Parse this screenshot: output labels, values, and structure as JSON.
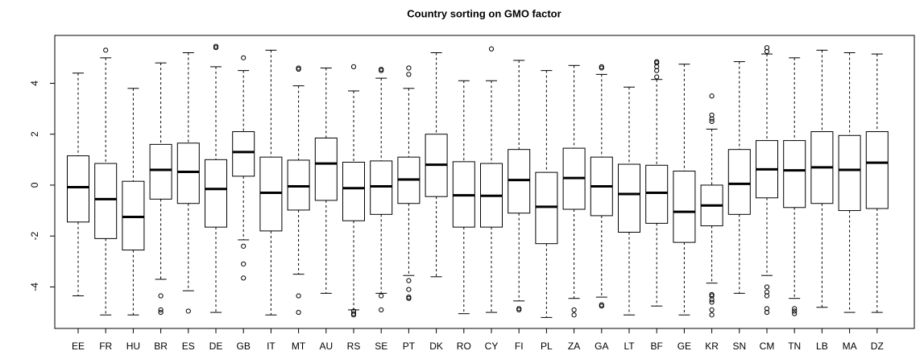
{
  "chart_data": {
    "type": "boxplot",
    "title": "Country sorting on GMO factor",
    "categories": [
      "EE",
      "FR",
      "HU",
      "BR",
      "ES",
      "DE",
      "GB",
      "IT",
      "MT",
      "AU",
      "RS",
      "SE",
      "PT",
      "DK",
      "RO",
      "CY",
      "FI",
      "PL",
      "ZA",
      "GA",
      "LT",
      "BF",
      "GE",
      "KR",
      "SN",
      "CM",
      "TN",
      "LB",
      "MA",
      "DZ"
    ],
    "ylim": [
      -5.63,
      5.88
    ],
    "yticks": [
      -4,
      -2,
      0,
      2,
      4
    ],
    "boxes": [
      {
        "low": -4.35,
        "q1": -1.45,
        "median": -0.08,
        "q3": 1.15,
        "high": 4.4,
        "outliers": []
      },
      {
        "low": -5.1,
        "q1": -2.1,
        "median": -0.55,
        "q3": 0.85,
        "high": 5.0,
        "outliers": [
          5.3
        ]
      },
      {
        "low": -5.1,
        "q1": -2.55,
        "median": -1.25,
        "q3": 0.15,
        "high": 3.8,
        "outliers": []
      },
      {
        "low": -3.7,
        "q1": -0.55,
        "median": 0.6,
        "q3": 1.6,
        "high": 4.8,
        "outliers": [
          -4.35,
          -4.9,
          -5.0
        ]
      },
      {
        "low": -4.15,
        "q1": -0.72,
        "median": 0.52,
        "q3": 1.65,
        "high": 5.2,
        "outliers": [
          -4.95
        ]
      },
      {
        "low": -5.0,
        "q1": -1.65,
        "median": -0.15,
        "q3": 1.0,
        "high": 4.65,
        "outliers": [
          5.4,
          5.45
        ]
      },
      {
        "low": -2.15,
        "q1": 0.35,
        "median": 1.3,
        "q3": 2.1,
        "high": 4.5,
        "outliers": [
          5.0,
          -2.4,
          -3.1,
          -3.65
        ]
      },
      {
        "low": -5.1,
        "q1": -1.8,
        "median": -0.3,
        "q3": 1.1,
        "high": 5.3,
        "outliers": []
      },
      {
        "low": -3.5,
        "q1": -0.98,
        "median": -0.05,
        "q3": 0.98,
        "high": 3.9,
        "outliers": [
          4.55,
          4.6,
          -4.35,
          -5.0
        ]
      },
      {
        "low": -4.25,
        "q1": -0.6,
        "median": 0.85,
        "q3": 1.85,
        "high": 4.6,
        "outliers": []
      },
      {
        "low": -4.9,
        "q1": -1.4,
        "median": -0.12,
        "q3": 0.9,
        "high": 3.7,
        "outliers": [
          4.65,
          -4.95,
          -5.05,
          -5.1
        ]
      },
      {
        "low": -4.25,
        "q1": -1.15,
        "median": -0.05,
        "q3": 0.95,
        "high": 4.2,
        "outliers": [
          4.5,
          4.55,
          -4.35,
          -4.9
        ]
      },
      {
        "low": -3.55,
        "q1": -0.72,
        "median": 0.22,
        "q3": 1.1,
        "high": 3.8,
        "outliers": [
          4.35,
          4.6,
          -3.75,
          -4.1,
          -4.4,
          -4.45
        ]
      },
      {
        "low": -3.6,
        "q1": -0.45,
        "median": 0.8,
        "q3": 2.0,
        "high": 5.2,
        "outliers": []
      },
      {
        "low": -5.05,
        "q1": -1.65,
        "median": -0.4,
        "q3": 0.92,
        "high": 4.1,
        "outliers": []
      },
      {
        "low": -5.0,
        "q1": -1.65,
        "median": -0.42,
        "q3": 0.85,
        "high": 4.1,
        "outliers": [
          5.35
        ]
      },
      {
        "low": -4.55,
        "q1": -1.1,
        "median": 0.2,
        "q3": 1.4,
        "high": 4.9,
        "outliers": [
          -4.85,
          -4.9
        ]
      },
      {
        "low": -5.2,
        "q1": -2.3,
        "median": -0.85,
        "q3": 0.5,
        "high": 4.5,
        "outliers": []
      },
      {
        "low": -4.45,
        "q1": -0.95,
        "median": 0.28,
        "q3": 1.45,
        "high": 4.7,
        "outliers": [
          -4.9,
          -5.1
        ]
      },
      {
        "low": -4.4,
        "q1": -1.2,
        "median": -0.05,
        "q3": 1.1,
        "high": 4.35,
        "outliers": [
          4.6,
          4.65,
          -4.7,
          -4.75
        ]
      },
      {
        "low": -5.1,
        "q1": -1.85,
        "median": -0.35,
        "q3": 0.82,
        "high": 3.85,
        "outliers": []
      },
      {
        "low": -4.75,
        "q1": -1.5,
        "median": -0.3,
        "q3": 0.78,
        "high": 4.15,
        "outliers": [
          4.25,
          4.5,
          4.65,
          4.8,
          4.85
        ]
      },
      {
        "low": -5.1,
        "q1": -2.25,
        "median": -1.05,
        "q3": 0.55,
        "high": 4.75,
        "outliers": []
      },
      {
        "low": -3.85,
        "q1": -1.6,
        "median": -0.8,
        "q3": 0,
        "high": 2.2,
        "outliers": [
          2.5,
          2.6,
          2.75,
          3.5,
          -4.3,
          -4.35,
          -4.5,
          -4.6,
          -4.9,
          -5.1
        ]
      },
      {
        "low": -4.25,
        "q1": -1.15,
        "median": 0.05,
        "q3": 1.4,
        "high": 4.85,
        "outliers": []
      },
      {
        "low": -3.55,
        "q1": -0.5,
        "median": 0.62,
        "q3": 1.75,
        "high": 5.15,
        "outliers": [
          5.25,
          5.4,
          -4.0,
          -4.2,
          -4.35,
          -4.85,
          -5.0
        ]
      },
      {
        "low": -4.45,
        "q1": -0.88,
        "median": 0.58,
        "q3": 1.75,
        "high": 5.0,
        "outliers": [
          -4.85,
          -4.95,
          -5.05
        ]
      },
      {
        "low": -4.8,
        "q1": -0.72,
        "median": 0.7,
        "q3": 2.1,
        "high": 5.3,
        "outliers": []
      },
      {
        "low": -5.0,
        "q1": -1.0,
        "median": 0.6,
        "q3": 1.95,
        "high": 5.2,
        "outliers": []
      },
      {
        "low": -5.0,
        "q1": -0.92,
        "median": 0.88,
        "q3": 2.1,
        "high": 5.15,
        "outliers": []
      }
    ]
  }
}
